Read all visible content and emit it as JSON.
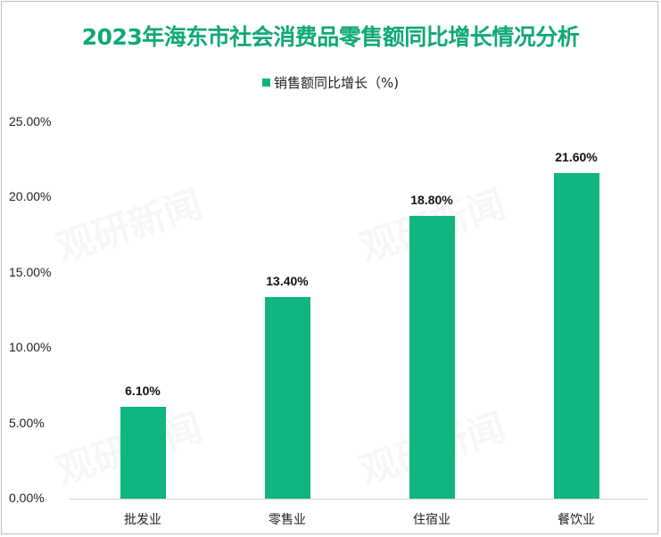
{
  "chart_data": {
    "type": "bar",
    "title": "2023年海东市社会消费品零售额同比增长情况分析",
    "legend": [
      "销售额同比增长（%)"
    ],
    "legend_position": "top",
    "categories": [
      "批发业",
      "零售业",
      "住宿业",
      "餐饮业"
    ],
    "series": [
      {
        "name": "销售额同比增长（%)",
        "values": [
          6.1,
          13.4,
          18.8,
          21.6
        ],
        "color": "#10b581"
      }
    ],
    "value_labels": [
      "6.10%",
      "13.40%",
      "18.80%",
      "21.60%"
    ],
    "y_ticks": [
      "0.00%",
      "5.00%",
      "10.00%",
      "15.00%",
      "20.00%",
      "25.00%"
    ],
    "xlabel": "",
    "ylabel": "",
    "ylim": [
      0,
      25
    ],
    "grid": false,
    "title_color": "#10a878"
  },
  "watermark": "观研新闻"
}
